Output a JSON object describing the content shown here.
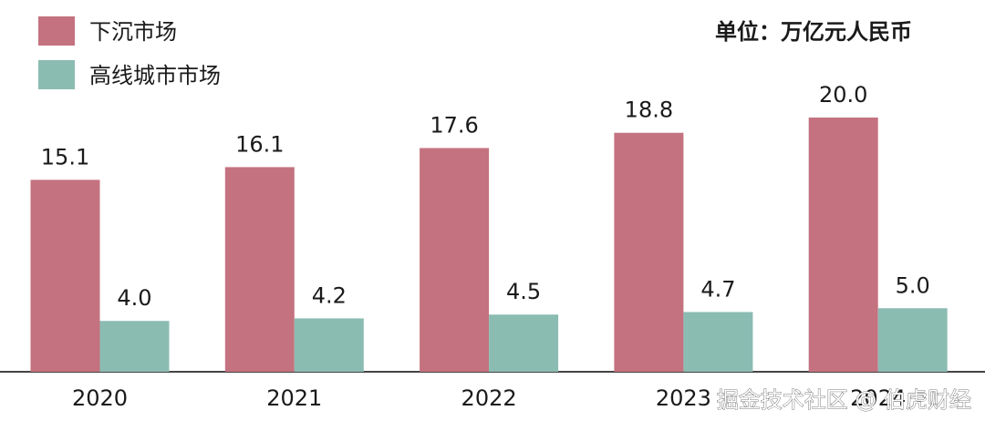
{
  "chart_data": {
    "type": "bar",
    "annotation": "单位：万亿元人民币",
    "watermark": "掘金技术社区 @ 伯虎财经",
    "categories": [
      "2020",
      "2021",
      "2022",
      "2023",
      "2024"
    ],
    "series": [
      {
        "name": "下沉市场",
        "color": "#c4727f",
        "values": [
          15.1,
          16.1,
          17.6,
          18.8,
          20
        ],
        "value_labels": [
          "15.1",
          "16.1",
          "17.6",
          "18.8",
          "20.0"
        ]
      },
      {
        "name": "高线城市市场",
        "color": "#8bbcb2",
        "values": [
          4,
          4.2,
          4.5,
          4.7,
          5
        ],
        "value_labels": [
          "4.0",
          "4.2",
          "4.5",
          "4.7",
          "5.0"
        ]
      }
    ],
    "legend": "top-left"
  }
}
